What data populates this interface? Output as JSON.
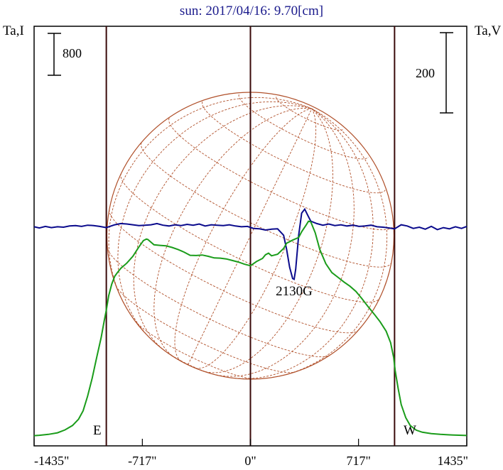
{
  "chart_data": {
    "type": "line",
    "title": "sun: 2017/04/16: 9.70[cm]",
    "left_axis_label": "Ta,I",
    "right_axis_label": "Ta,V",
    "x_unit": "arcsec",
    "xlim": [
      -1435,
      1435
    ],
    "x_ticks": [
      {
        "value": -1435,
        "label": "-1435\""
      },
      {
        "value": -717,
        "label": "-717\""
      },
      {
        "value": 0,
        "label": "0\""
      },
      {
        "value": 717,
        "label": "717\""
      },
      {
        "value": 1435,
        "label": "1435\""
      }
    ],
    "vertical_lines": [
      -956,
      0,
      956
    ],
    "limb_labels": {
      "east": "E",
      "west": "W"
    },
    "scale_bar_left": {
      "label": "800",
      "series": "Ta,I"
    },
    "scale_bar_right": {
      "label": "200",
      "series": "Ta,V"
    },
    "annotation": {
      "label": "2130G",
      "x": 290
    },
    "colors": {
      "intensity": "#1a9c1a",
      "polarization": "#0a0a8c",
      "disk": "#b0502a",
      "frame": "#000000",
      "divider": "#3a0a0a",
      "title": "#1a1a8c"
    },
    "series": [
      {
        "name": "Ta,I",
        "axis": "left",
        "baseline": 0,
        "x": [
          -1435,
          -1400,
          -1340,
          -1280,
          -1230,
          -1180,
          -1140,
          -1110,
          -1080,
          -1050,
          -1020,
          -990,
          -970,
          -956,
          -940,
          -920,
          -900,
          -880,
          -860,
          -820,
          -780,
          -740,
          -710,
          -690,
          -680,
          -660,
          -640,
          -600,
          -560,
          -520,
          -480,
          -440,
          -400,
          -360,
          -320,
          -280,
          -240,
          -200,
          -160,
          -120,
          -80,
          -40,
          0,
          40,
          80,
          100,
          120,
          140,
          180,
          220,
          240,
          280,
          320,
          340,
          370,
          385,
          400,
          430,
          460,
          500,
          540,
          580,
          620,
          660,
          700,
          740,
          780,
          820,
          860,
          900,
          930,
          950,
          960,
          980,
          1000,
          1030,
          1060,
          1100,
          1140,
          1200,
          1260,
          1320,
          1400,
          1435
        ],
        "values": [
          6,
          12,
          30,
          60,
          115,
          200,
          320,
          480,
          760,
          1100,
          1500,
          1880,
          2200,
          2400,
          2680,
          2900,
          3050,
          3130,
          3200,
          3300,
          3430,
          3610,
          3730,
          3760,
          3750,
          3700,
          3650,
          3640,
          3630,
          3600,
          3560,
          3510,
          3450,
          3445,
          3455,
          3430,
          3400,
          3395,
          3380,
          3350,
          3320,
          3280,
          3250,
          3330,
          3390,
          3460,
          3490,
          3440,
          3470,
          3580,
          3680,
          3740,
          3790,
          3900,
          4030,
          4100,
          4090,
          3880,
          3560,
          3290,
          3120,
          3030,
          2940,
          2860,
          2760,
          2620,
          2470,
          2330,
          2180,
          2000,
          1780,
          1500,
          1250,
          900,
          600,
          350,
          200,
          110,
          70,
          45,
          30,
          20,
          12,
          8
        ]
      },
      {
        "name": "Ta,V",
        "axis": "right",
        "baseline": 0,
        "x": [
          -1435,
          -1400,
          -1360,
          -1320,
          -1280,
          -1240,
          -1200,
          -1160,
          -1120,
          -1080,
          -1040,
          -1000,
          -956,
          -900,
          -860,
          -820,
          -780,
          -740,
          -700,
          -660,
          -620,
          -580,
          -540,
          -500,
          -460,
          -420,
          -380,
          -340,
          -300,
          -260,
          -220,
          -180,
          -140,
          -100,
          -60,
          -20,
          20,
          60,
          100,
          140,
          180,
          220,
          240,
          260,
          280,
          290,
          300,
          320,
          340,
          360,
          380,
          400,
          440,
          480,
          520,
          560,
          600,
          640,
          680,
          720,
          760,
          800,
          840,
          880,
          920,
          956,
          1000,
          1040,
          1080,
          1120,
          1160,
          1200,
          1240,
          1280,
          1320,
          1360,
          1400,
          1435
        ],
        "values": [
          1,
          -2,
          2,
          -1,
          1,
          0,
          3,
          4,
          2,
          5,
          4,
          2,
          -1,
          6,
          9,
          8,
          6,
          4,
          5,
          6,
          9,
          5,
          3,
          6,
          4,
          7,
          5,
          8,
          3,
          6,
          5,
          4,
          6,
          3,
          1,
          2,
          -3,
          -4,
          -7,
          -5,
          -4,
          -20,
          -55,
          -100,
          -128,
          -130,
          -105,
          -20,
          35,
          45,
          30,
          15,
          9,
          5,
          8,
          4,
          6,
          3,
          5,
          2,
          3,
          5,
          1,
          0,
          -2,
          -4,
          6,
          3,
          -3,
          0,
          -5,
          2,
          -6,
          -1,
          -4,
          1,
          -3,
          2
        ]
      }
    ]
  }
}
